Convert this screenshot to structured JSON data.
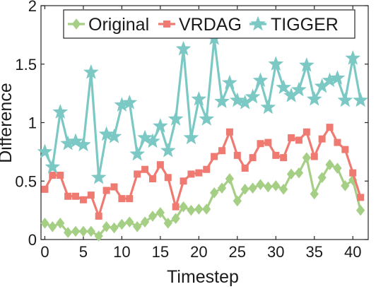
{
  "chart_data": {
    "type": "line",
    "xlabel": "Timestep",
    "ylabel": "Difference",
    "xlim": [
      -0.5,
      42
    ],
    "ylim": [
      0,
      2
    ],
    "xticks": [
      0,
      5,
      10,
      15,
      20,
      25,
      30,
      35,
      40
    ],
    "xtick_labels": [
      "0",
      "5",
      "10",
      "15",
      "20",
      "25",
      "30",
      "35",
      "40"
    ],
    "yticks": [
      0,
      0.5,
      1,
      1.5,
      2
    ],
    "ytick_labels": [
      "0",
      "0.5",
      "1",
      "1.5",
      "2"
    ],
    "grid": false,
    "legend_position": "top",
    "series": [
      {
        "name": "Original",
        "color": "#a6cf86",
        "marker": "diamond",
        "values": [
          0.14,
          0.11,
          0.14,
          0.06,
          0.07,
          0.07,
          0.07,
          0.03,
          0.11,
          0.1,
          0.13,
          0.15,
          0.11,
          0.15,
          0.2,
          0.23,
          0.14,
          0.18,
          0.28,
          0.25,
          0.26,
          0.26,
          0.4,
          0.44,
          0.52,
          0.33,
          0.43,
          0.44,
          0.47,
          0.45,
          0.46,
          0.43,
          0.56,
          0.57,
          0.7,
          0.39,
          0.53,
          0.64,
          0.61,
          0.46,
          0.51,
          0.25
        ]
      },
      {
        "name": "VRDAG",
        "color": "#ef7a72",
        "marker": "square",
        "values": [
          0.43,
          0.55,
          0.55,
          0.37,
          0.37,
          0.34,
          0.38,
          0.2,
          0.42,
          0.45,
          0.35,
          0.35,
          0.56,
          0.6,
          0.52,
          0.64,
          0.53,
          0.28,
          0.5,
          0.56,
          0.57,
          0.6,
          0.71,
          0.76,
          0.92,
          0.72,
          0.61,
          0.7,
          0.82,
          0.83,
          0.72,
          0.7,
          0.87,
          0.85,
          0.92,
          0.71,
          0.86,
          0.96,
          0.83,
          0.77,
          0.57,
          0.36
        ]
      },
      {
        "name": "TIGGER",
        "color": "#7bc8c4",
        "marker": "star",
        "values": [
          0.75,
          0.62,
          1.09,
          0.82,
          0.84,
          0.81,
          1.43,
          0.53,
          0.9,
          0.88,
          1.15,
          1.17,
          0.73,
          0.87,
          0.84,
          0.97,
          0.76,
          1.03,
          1.63,
          0.87,
          1.2,
          1.03,
          1.72,
          1.18,
          1.34,
          1.19,
          1.17,
          1.22,
          1.36,
          1.13,
          1.5,
          1.3,
          1.23,
          1.28,
          1.49,
          1.2,
          1.31,
          1.36,
          1.38,
          1.19,
          1.55,
          1.19
        ]
      }
    ]
  }
}
